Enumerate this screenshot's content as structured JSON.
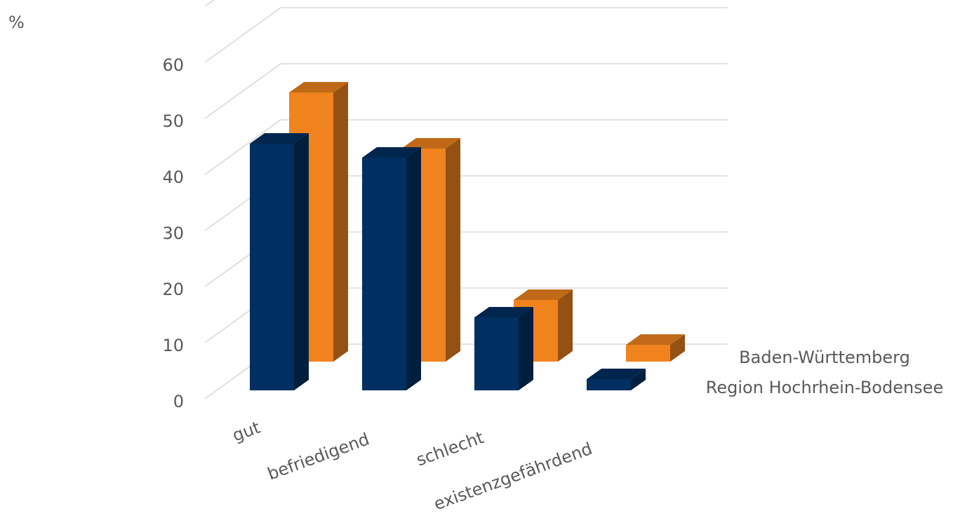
{
  "chart_data": {
    "type": "bar",
    "title": "",
    "ylabel": "%",
    "xlabel": "",
    "ylim": [
      0,
      60
    ],
    "yticks": [
      0,
      10,
      20,
      30,
      40,
      50,
      60
    ],
    "grid": true,
    "three_d": true,
    "legend_position": "right",
    "categories": [
      "gut",
      "befriedigend",
      "schlecht",
      "existenzgefährdend"
    ],
    "series": [
      {
        "name": "Region Hochrhein-Bodensee",
        "color": "#003062",
        "values": [
          44,
          41.5,
          13,
          2
        ]
      },
      {
        "name": "Baden-Württemberg",
        "color": "#F0831E",
        "values": [
          48,
          38,
          11,
          3
        ]
      }
    ]
  }
}
